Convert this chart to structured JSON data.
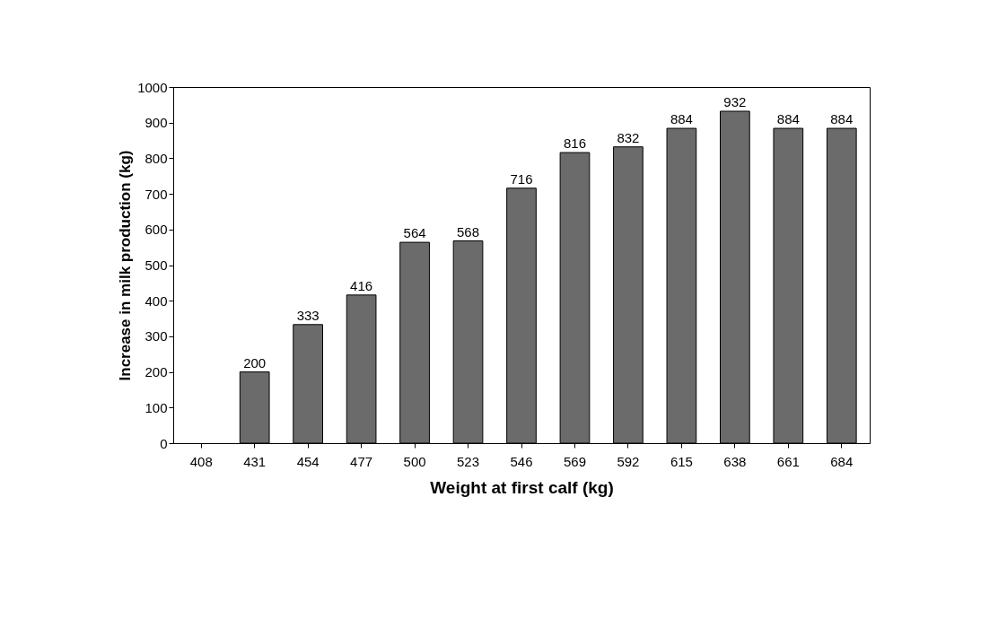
{
  "chart_data": {
    "type": "bar",
    "xlabel": "Weight at first calf (kg)",
    "ylabel": "Increase in milk production (kg)",
    "categories": [
      "408",
      "431",
      "454",
      "477",
      "500",
      "523",
      "546",
      "569",
      "592",
      "615",
      "638",
      "661",
      "684"
    ],
    "values": [
      null,
      200,
      333,
      416,
      564,
      568,
      716,
      816,
      832,
      884,
      932,
      884,
      884
    ],
    "value_labels": [
      null,
      "200",
      "333",
      "416",
      "564",
      "568",
      "716",
      "816",
      "832",
      "884",
      "932",
      "884",
      "884"
    ],
    "color": "#6b6b6b",
    "ylim": [
      0,
      1000
    ],
    "yticks": [
      0,
      100,
      200,
      300,
      400,
      500,
      600,
      700,
      800,
      900,
      1000
    ],
    "grid": false
  }
}
